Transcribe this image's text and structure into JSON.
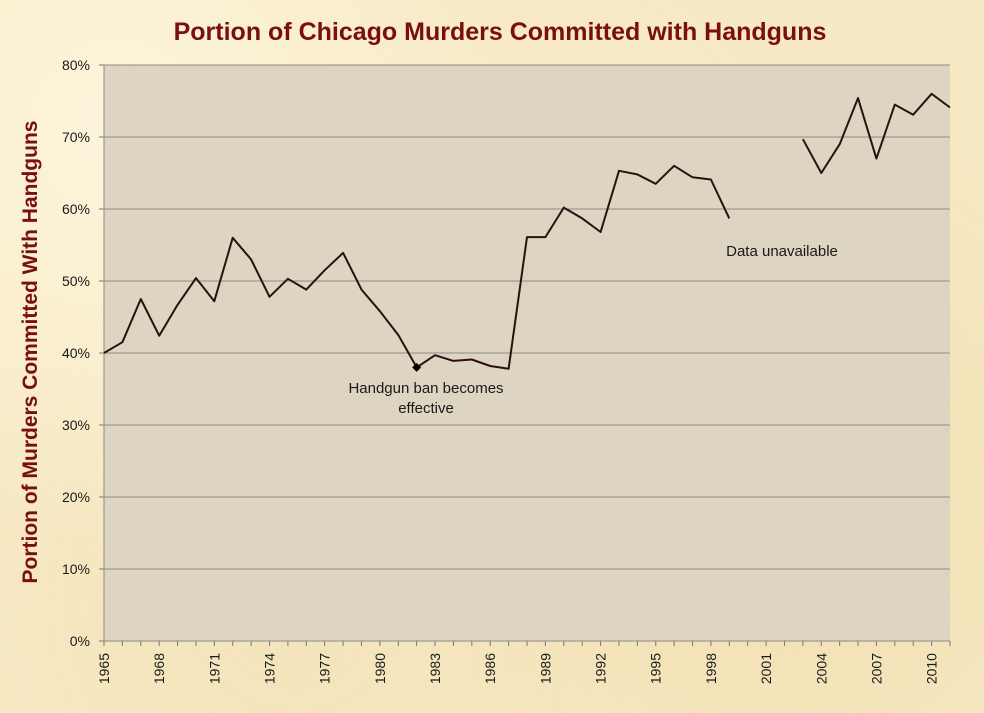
{
  "chart_data": {
    "type": "line",
    "title": "Portion of Chicago Murders Committed with Handguns",
    "ylabel": "Portion of Murders Committed With Handguns",
    "xlabel": "",
    "ylim": [
      0,
      0.8
    ],
    "y_ticks": [
      "0%",
      "10%",
      "20%",
      "30%",
      "40%",
      "50%",
      "60%",
      "70%",
      "80%"
    ],
    "x_ticks": [
      "1965",
      "1968",
      "1971",
      "1974",
      "1977",
      "1980",
      "1983",
      "1986",
      "1989",
      "1992",
      "1995",
      "1998",
      "2001",
      "2004",
      "2007",
      "2010"
    ],
    "grid": "horizontal",
    "plot_background": "#ddd5c1",
    "line_color": "#2a1010",
    "series": [
      {
        "x": [
          1965,
          1966,
          1967,
          1968,
          1969,
          1970,
          1971,
          1972,
          1973,
          1974,
          1975,
          1976,
          1977,
          1978,
          1979,
          1980,
          1981,
          1982,
          1983,
          1984,
          1985,
          1986,
          1987,
          1988,
          1989,
          1990,
          1991,
          1992,
          1993,
          1994,
          1995,
          1996,
          1997,
          1998,
          1999,
          2000,
          2001,
          2002,
          2003,
          2004,
          2005,
          2006,
          2007,
          2008,
          2009,
          2010,
          2011
        ],
        "values": [
          0.4,
          0.415,
          0.475,
          0.424,
          0.467,
          0.504,
          0.472,
          0.56,
          0.53,
          0.478,
          0.503,
          0.488,
          0.515,
          0.539,
          0.488,
          0.458,
          0.425,
          0.38,
          0.397,
          0.389,
          0.391,
          0.382,
          0.378,
          0.561,
          0.561,
          0.602,
          0.587,
          0.568,
          0.653,
          0.648,
          0.635,
          0.66,
          0.644,
          0.641,
          0.587,
          null,
          null,
          null,
          0.697,
          0.65,
          0.69,
          0.754,
          0.67,
          0.745,
          0.731,
          0.76,
          0.741
        ]
      }
    ],
    "annotations": [
      {
        "x": 1982,
        "y": 0.38,
        "text_line1": "Handgun  ban becomes",
        "text_line2": "effective",
        "marker": "diamond"
      },
      {
        "text": "Data  unavailable",
        "x": 2001,
        "y": 0.54
      }
    ]
  }
}
